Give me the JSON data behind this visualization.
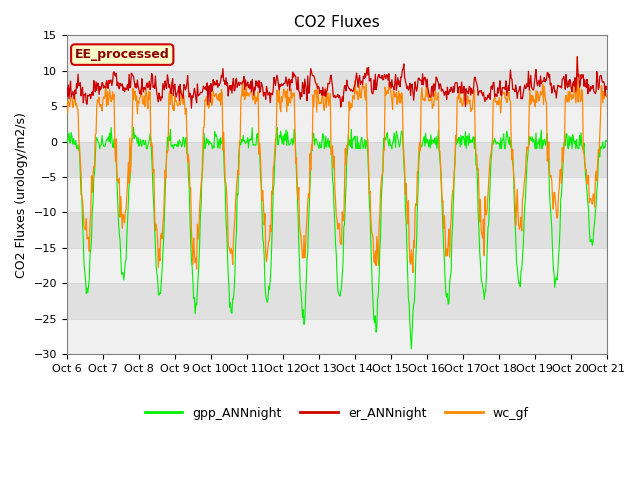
{
  "title": "CO2 Fluxes",
  "ylabel": "CO2 Fluxes (urology/m2/s)",
  "xlabel": "",
  "ylim": [
    -30,
    15
  ],
  "yticks": [
    -30,
    -25,
    -20,
    -15,
    -10,
    -5,
    0,
    5,
    10,
    15
  ],
  "xtick_labels": [
    "Oct 6",
    "Oct 7",
    "Oct 8",
    "Oct 9",
    "Oct 10",
    "Oct 11",
    "Oct 12",
    "Oct 13",
    "Oct 14",
    "Oct 15",
    "Oct 16",
    "Oct 17",
    "Oct 18",
    "Oct 19",
    "Oct 20",
    "Oct 21"
  ],
  "n_days": 15,
  "points_per_day": 48,
  "gpp_color": "#00ee00",
  "er_color": "#cc0000",
  "wc_color": "#ff8800",
  "bg_color": "#e0e0e0",
  "white_band_color": "#f0f0f0",
  "label_box_text": "EE_processed",
  "label_box_facecolor": "#ffffcc",
  "label_box_edgecolor": "#cc0000",
  "legend_labels": [
    "gpp_ANNnight",
    "er_ANNnight",
    "wc_gf"
  ],
  "title_fontsize": 11,
  "axis_fontsize": 9,
  "tick_fontsize": 8
}
